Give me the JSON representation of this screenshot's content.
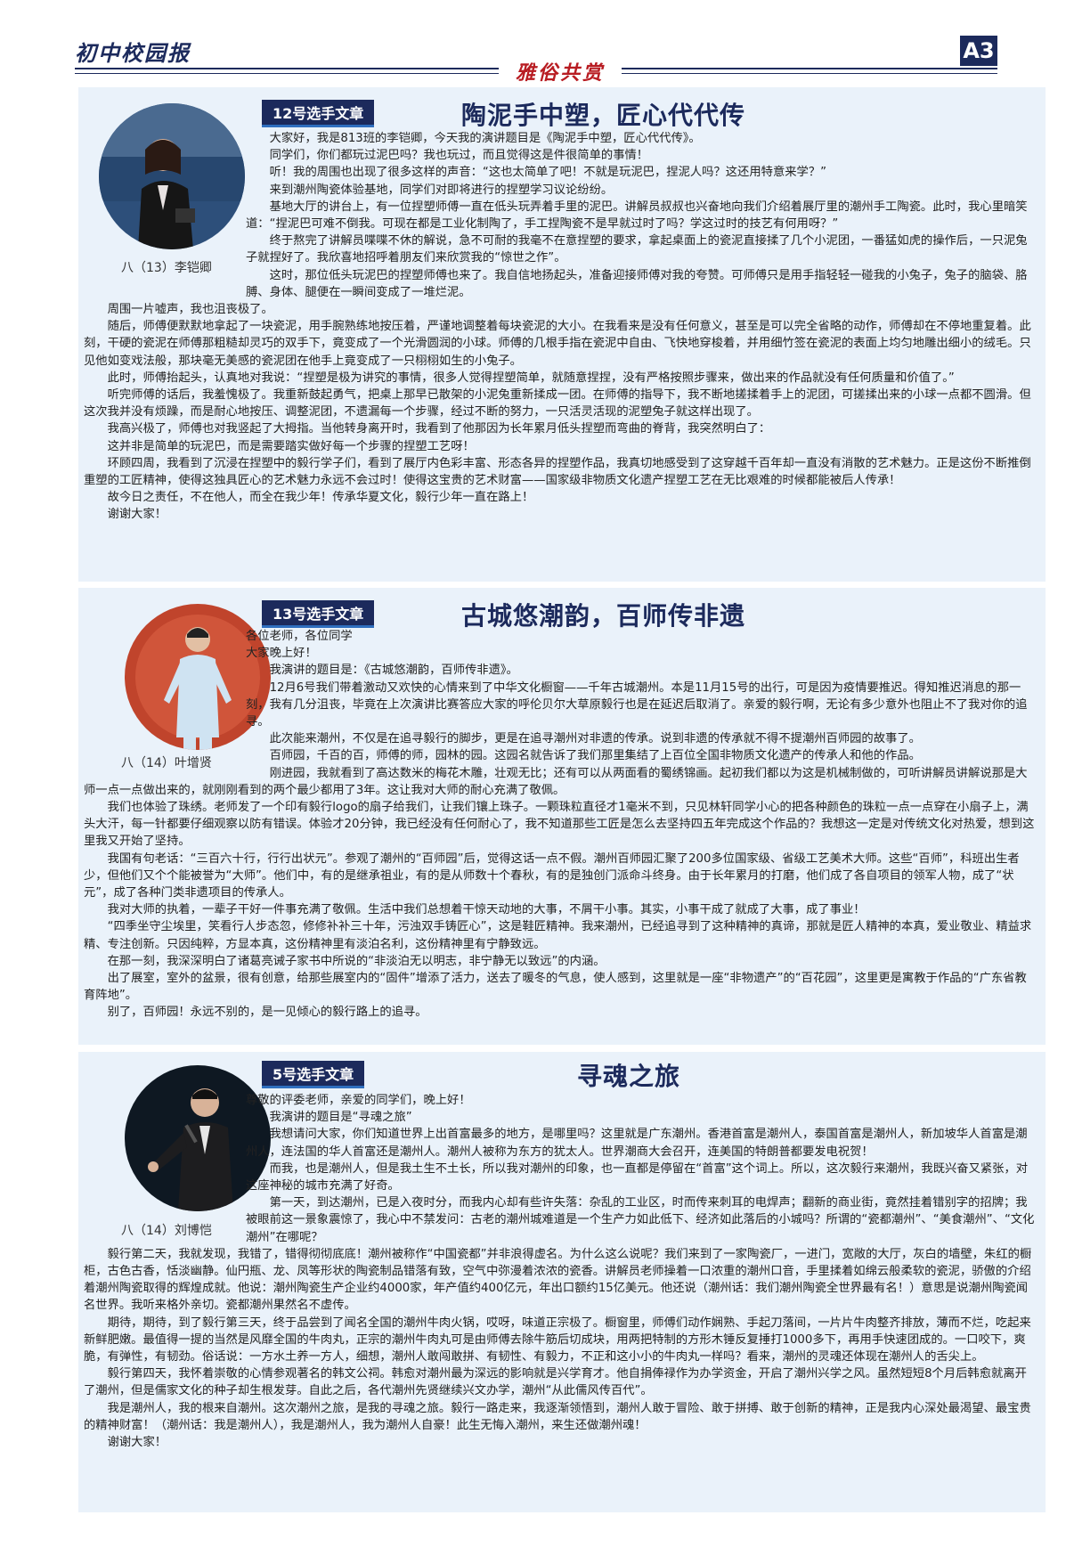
{
  "header": {
    "masthead": "初中校园报",
    "column": "雅俗共赏",
    "page_number": "A3"
  },
  "articles": [
    {
      "label": "12号选手文章",
      "title": "陶泥手中塑，匠心代代传",
      "caption": "八（13）李铠卿",
      "paragraphs": [
        "大家好，我是813班的李铠卿，今天我的演讲题目是《陶泥手中塑，匠心代代传》。",
        "同学们，你们都玩过泥巴吗？我也玩过，而且觉得这是件很简单的事情！",
        "听！我的周围也出现了很多这样的声音：“这也太简单了吧！不就是玩泥巴，捏泥人吗？这还用特意来学？”",
        "来到潮州陶瓷体验基地，同学们对即将进行的捏塑学习议论纷纷。",
        "基地大厅的讲台上，有一位捏塑师傅一直在低头玩弄着手里的泥巴。讲解员叔叔也兴奋地向我们介绍着展厅里的潮州手工陶瓷。此时，我心里暗笑道：“捏泥巴可难不倒我。可现在都是工业化制陶了，手工捏陶瓷不是早就过时了吗？学这过时的技艺有何用呀？”",
        "终于熬完了讲解员喋喋不休的解说，急不可耐的我毫不在意捏塑的要求，拿起桌面上的瓷泥直接揉了几个小泥团，一番猛如虎的操作后，一只泥兔子就捏好了。我欣喜地招呼着朋友们来欣赏我的“惊世之作”。",
        "这时，那位低头玩泥巴的捏塑师傅也来了。我自信地扬起头，准备迎接师傅对我的夸赞。可师傅只是用手指轻轻一碰我的小兔子，兔子的脑袋、胳膊、身体、腿便在一瞬间变成了一堆烂泥。",
        "周围一片嘘声，我也沮丧极了。",
        "随后，师傅便默默地拿起了一块瓷泥，用手腕熟练地按压着，严谨地调整着每块瓷泥的大小。在我看来是没有任何意义，甚至是可以完全省略的动作，师傅却在不停地重复着。此刻，干硬的瓷泥在师傅那粗糙却灵巧的双手下，竟变成了一个光滑圆润的小球。师傅的几根手指在瓷泥中自由、飞快地穿梭着，并用细竹签在瓷泥的表面上均匀地雕出细小的绒毛。只见他如变戏法般，那块毫无美感的瓷泥团在他手上竟变成了一只栩栩如生的小兔子。",
        "此时，师傅抬起头，认真地对我说：“捏塑是极为讲究的事情，很多人觉得捏塑简单，就随意捏捏，没有严格按照步骤来，做出来的作品就没有任何质量和价值了。”",
        "听完师傅的话后，我羞愧极了。我重新鼓起勇气，把桌上那早已散架的小泥兔重新揉成一团。在师傅的指导下，我不断地搓揉着手上的泥团，可搓揉出来的小球一点都不圆滑。但这次我并没有烦躁，而是耐心地按压、调整泥团，不遗漏每一个步骤，经过不断的努力，一只活灵活现的泥塑兔子就这样出现了。",
        "我高兴极了，师傅也对我竖起了大拇指。当他转身离开时，我看到了他那因为长年累月低头捏塑而弯曲的脊背，我突然明白了：",
        "这并非是简单的玩泥巴，而是需要踏实做好每一个步骤的捏塑工艺呀！",
        "环顾四周，我看到了沉浸在捏塑中的毅行学子们，看到了展厅内色彩丰富、形态各异的捏塑作品，我真切地感受到了这穿越千百年却一直没有消散的艺术魅力。正是这份不断推倒重塑的工匠精神，使得这独具匠心的艺术魅力永远不会过时！使得这宝贵的艺术财富——国家级非物质文化遗产捏塑工艺在无比艰难的时候都能被后人传承！",
        "故今日之责任，不在他人，而全在我少年！传承华夏文化，毅行少年一直在路上！",
        "谢谢大家！"
      ]
    },
    {
      "label": "13号选手文章",
      "title": "古城悠潮韵，百师传非遗",
      "caption": "八（14）叶增贤",
      "paragraphs": [
        "各位老师，各位同学",
        "大家晚上好！",
        "我演讲的题目是：《古城悠潮韵，百师传非遗》。",
        "12月6号我们带着激动又欢快的心情来到了中华文化橱窗——千年古城潮州。本是11月15号的出行，可是因为疫情要推迟。得知推迟消息的那一刻，我有几分沮丧，毕竟在上次演讲比赛答应大家的呼伦贝尔大草原毅行也是在延迟后取消了。亲爱的毅行啊，无论有多少意外也阻止不了我对你的追寻。",
        "此次能来潮州，不仅是在追寻毅行的脚步，更是在追寻潮州对非遗的传承。说到非遗的传承就不得不提潮州百师园的故事了。",
        "百师园，千百的百，师傅的师，园林的园。这园名就告诉了我们那里集结了上百位全国非物质文化遗产的传承人和他的作品。",
        "刚进园，我就看到了高达数米的梅花木雕，壮观无比；还有可以从两面看的蜀绣锦画。起初我们都以为这是机械制做的，可听讲解员讲解说那是大师一点一点做出来的，就刚刚看到的两个最少都用了3年。这让我对大师的耐心充满了敬佩。",
        "我们也体验了珠绣。老师发了一个印有毅行logo的扇子给我们，让我们镶上珠子。一颗珠粒直径才1毫米不到，只见林轩同学小心的把各种颜色的珠粒一点一点穿在小扇子上，满头大汗，每一针都要仔细观察以防有错误。体验才20分钟，我已经没有任何耐心了，我不知道那些工匠是怎么去坚持四五年完成这个作品的？我想这一定是对传统文化对热爱，想到这里我又开始了坚持。",
        "我国有句老话：“三百六十行，行行出状元”。参观了潮州的“百师园”后，觉得这话一点不假。潮州百师园汇聚了200多位国家级、省级工艺美术大师。这些“百师”，科班出生者少，但他们又个个能被誉为“大师”。他们中，有的是继承祖业，有的是从师数十个春秋，有的是独创门派命斗终身。由于长年累月的打磨，他们成了各自项目的领军人物，成了“状元”，成了各种门类非遗项目的传承人。",
        "我对大师的执着，一辈子干好一件事充满了敬佩。生活中我们总想着干惊天动地的大事，不屑干小事。其实，小事干成了就成了大事，成了事业！",
        "“四季坐守尘埃里，笑看行人步态忽，修修补补三十年，污浊双手铸匠心”，这是鞋匠精神。我来潮州，已经追寻到了这种精神的真谛，那就是匠人精神的本真，爱业敬业、精益求精、专注创新。只因纯粹，方显本真，这份精神里有淡泊名利，这份精神里有宁静致远。",
        "在那一刻，我深深明白了诸葛亮诫子家书中所说的“非淡泊无以明志，非宁静无以致远”的内涵。",
        "出了展室，室外的盆景，很有创意，给那些展室内的“固件”增添了活力，送去了暖冬的气息，使人感到，这里就是一座“非物遗产”的“百花园”，这里更是寓教于作品的“广东省教育阵地”。",
        "别了，百师园！永远不别的，是一见倾心的毅行路上的追寻。"
      ]
    },
    {
      "label": "5号选手文章",
      "title": "寻魂之旅",
      "caption": "八（14）刘博恺",
      "paragraphs": [
        "尊敬的评委老师，亲爱的同学们，晚上好！",
        "我演讲的题目是“寻魂之旅”",
        "我想请问大家，你们知道世界上出首富最多的地方，是哪里吗？这里就是广东潮州。香港首富是潮州人，泰国首富是潮州人，新加坡华人首富是潮州人，连法国的华人首富还是潮州人。潮州人被称为东方的犹太人。世界潮商大会召开，连美国的特朗普都要发电祝贺！",
        "而我，也是潮州人，但是我土生不土长，所以我对潮州的印象，也一直都是停留在“首富”这个词上。所以，这次毅行来潮州，我既兴奋又紧张，对这座神秘的城市充满了好奇。",
        "第一天，到达潮州，已是入夜时分，而我内心却有些许失落：杂乱的工业区，时而传来刺耳的电焊声；翻新的商业街，竟然挂着错别字的招牌；我被眼前这一景象震惊了，我心中不禁发问：古老的潮州城难道是一个生产力如此低下、经济如此落后的小城吗？所谓的“瓷都潮州”、“美食潮州”、“文化潮州”在哪呢？",
        "毅行第二天，我就发现，我错了，错得彻彻底底！潮州被称作“中国瓷都”并非浪得虚名。为什么这么说呢？我们来到了一家陶瓷厂，一进门，宽敞的大厅，灰白的墙壁，朱红的橱柜，古色古香，恬淡幽静。仙円瓶、龙、凤等形状的陶瓷制品错落有致，空气中弥漫着浓浓的瓷香。讲解员老师操着一口浓重的潮州口音，手里揉着如绵云般柔软的瓷泥，骄傲的介绍着潮州陶瓷取得的辉煌成就。他说：潮州陶瓷生产企业约4000家，年产值约400亿元，年出口额约15亿美元。他还说（潮州话：我们潮州陶瓷全世界最有名！）意思是说潮州陶瓷闻名世界。我听来格外亲切。瓷都潮州果然名不虚传。",
        "期待，期待，到了毅行第三天，终于品尝到了闻名全国的潮州牛肉火锅，哎呀，味道正宗极了。橱窗里，师傅们动作娴熟、手起刀落间，一片片牛肉整齐排放，薄而不烂，吃起来新鲜肥嫩。最值得一提的当然是风靡全国的牛肉丸，正宗的潮州牛肉丸可是由师傅去除牛筋后切成块，用两把特制的方形木锤反复捶打1000多下，再用手快速团成的。一口咬下，爽脆，有弹性，有韧劲。俗话说：一方水土养一方人，细想，潮州人敢闯敢拼、有韧性、有毅力，不正和这小小的牛肉丸一样吗？看来，潮州的灵魂还体现在潮州人的舌尖上。",
        "毅行第四天，我怀着崇敬的心情参观著名的韩文公祠。韩愈对潮州最为深远的影响就是兴学育才。他自捐俸禄作为办学资金，开启了潮州兴学之风。虽然短短8个月后韩愈就离开了潮州，但是儒家文化的种子却生根发芽。自此之后，各代潮州先贤继续兴文办学，潮州“从此儒风传百代”。",
        "我是潮州人，我的根来自潮州。这次潮州之旅，是我的寻魂之旅。毅行一路走来，我逐渐领悟到，潮州人敢于冒险、敢于拼搏、敢于创新的精神，正是我内心深处最渴望、最宝贵的精神财富！（潮州话：我是潮州人），我是潮州人，我为潮州人自豪！此生无悔入潮州，来生还做潮州魂！",
        "谢谢大家！"
      ]
    }
  ]
}
